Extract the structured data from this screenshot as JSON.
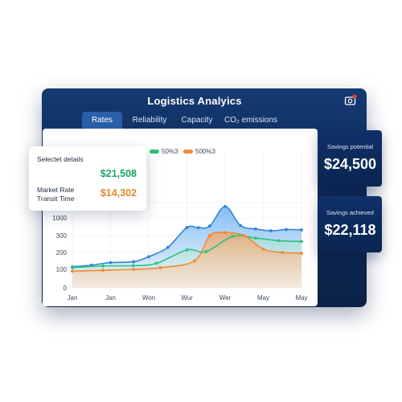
{
  "window": {
    "title": "Logistics Analyics"
  },
  "tabs": [
    {
      "label": "Rates",
      "active": true
    },
    {
      "label": "Reliability",
      "active": false
    },
    {
      "label": "Capacity",
      "active": false
    },
    {
      "label": "CO₂ emissions",
      "active": false
    }
  ],
  "details_card": {
    "heading": "Selectet details",
    "value_1": "$21,508",
    "label_2": "Market Rate Transit Time",
    "value_2": "$14,302"
  },
  "stats": [
    {
      "label": "Savings potential",
      "value": "$24,500"
    },
    {
      "label": "Savings achieved",
      "value": "$22,118"
    }
  ],
  "colors": {
    "blue": "#2f86d6",
    "green": "#2ec27e",
    "orange": "#ef8a34",
    "navy": "#0e2a57"
  },
  "chart_data": {
    "type": "area",
    "categories": [
      "Jan",
      "Jan",
      "Won",
      "Wur",
      "Wer",
      "May",
      "May"
    ],
    "y_ticks": [
      "0",
      "100",
      "200",
      "300",
      "1000"
    ],
    "legend": [
      {
        "label": "50%3",
        "color": "#2ec27e"
      },
      {
        "label": "500%3",
        "color": "#ef8a34"
      }
    ],
    "grid": true,
    "series": [
      {
        "color": "#2f86d6",
        "values": [
          {
            "x": 0.0,
            "y": 115
          },
          {
            "x": 0.5,
            "y": 125
          },
          {
            "x": 1.0,
            "y": 140
          },
          {
            "x": 1.6,
            "y": 145
          },
          {
            "x": 2.0,
            "y": 175
          },
          {
            "x": 2.5,
            "y": 230
          },
          {
            "x": 3.0,
            "y": 620
          },
          {
            "x": 3.3,
            "y": 610
          },
          {
            "x": 3.6,
            "y": 680
          },
          {
            "x": 4.0,
            "y": 1150
          },
          {
            "x": 4.4,
            "y": 700
          },
          {
            "x": 4.8,
            "y": 560
          },
          {
            "x": 5.2,
            "y": 490
          },
          {
            "x": 5.6,
            "y": 540
          },
          {
            "x": 6.0,
            "y": 525
          }
        ]
      },
      {
        "color": "#2ec27e",
        "values": [
          {
            "x": 0.0,
            "y": 110
          },
          {
            "x": 0.8,
            "y": 120
          },
          {
            "x": 1.6,
            "y": 122
          },
          {
            "x": 2.2,
            "y": 135
          },
          {
            "x": 3.0,
            "y": 215
          },
          {
            "x": 3.5,
            "y": 205
          },
          {
            "x": 4.2,
            "y": 295
          },
          {
            "x": 4.8,
            "y": 285
          },
          {
            "x": 5.4,
            "y": 270
          },
          {
            "x": 6.0,
            "y": 265
          }
        ]
      },
      {
        "color": "#ef8a34",
        "values": [
          {
            "x": 0.0,
            "y": 90
          },
          {
            "x": 0.8,
            "y": 95
          },
          {
            "x": 1.6,
            "y": 100
          },
          {
            "x": 2.3,
            "y": 110
          },
          {
            "x": 3.2,
            "y": 150
          },
          {
            "x": 3.6,
            "y": 300
          },
          {
            "x": 4.0,
            "y": 420
          },
          {
            "x": 4.5,
            "y": 300
          },
          {
            "x": 5.0,
            "y": 220
          },
          {
            "x": 5.5,
            "y": 200
          },
          {
            "x": 6.0,
            "y": 195
          }
        ]
      }
    ]
  }
}
